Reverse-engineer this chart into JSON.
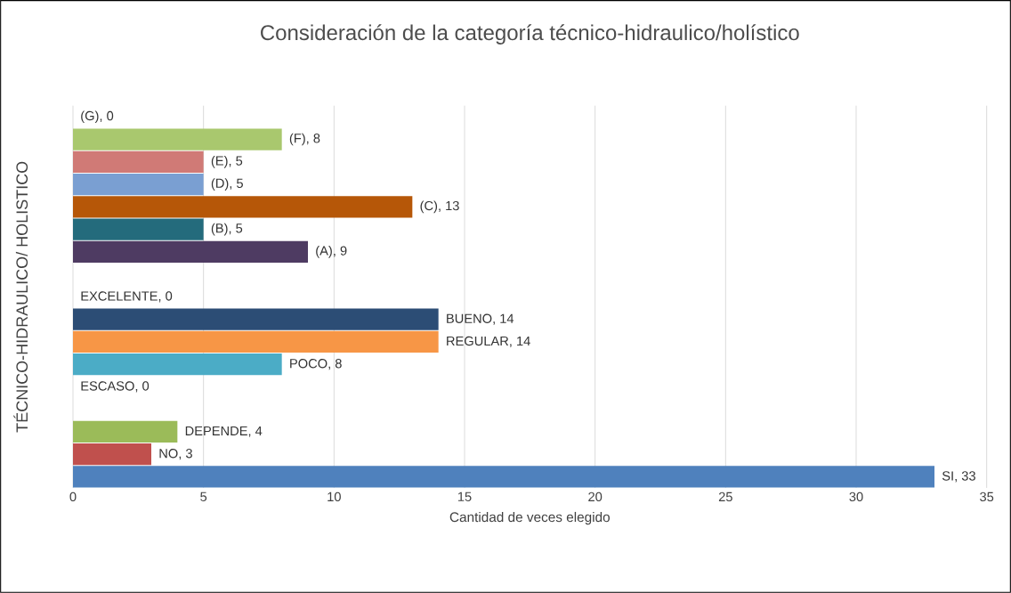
{
  "chart_data": {
    "type": "bar",
    "orientation": "horizontal",
    "title": "Consideración de la categoría técnico-hidraulico/holístico",
    "xlabel": "Cantidad de veces elegido",
    "ylabel": "TÉCNICO-HIDRAULICO/ HOLISTICO",
    "categories": [
      null,
      null,
      null,
      null,
      null,
      null,
      null,
      null,
      null,
      null,
      null,
      null,
      null,
      null,
      null,
      null,
      null
    ],
    "values": [
      0,
      8,
      5,
      5,
      13,
      5,
      9,
      null,
      0,
      14,
      14,
      8,
      0,
      null,
      4,
      3,
      33
    ],
    "colors": [
      "#9bbb59",
      "#a9c86e",
      "#d07a76",
      "#7a9fd2",
      "#b65708",
      "#246b7c",
      "#4e3b62",
      null,
      "#2c4d75",
      "#2c4d75",
      "#f79646",
      "#4bacc6",
      "#4bacc6",
      null,
      "#9bbb59",
      "#c0504d",
      "#4f81bd"
    ],
    "value_labels": [
      "(G), 0",
      "(F), 8",
      "(E), 5",
      "(D), 5",
      "(C), 13",
      "(B), 5",
      "(A), 9",
      null,
      "EXCELENTE, 0",
      "BUENO, 14",
      "REGULAR, 14",
      "POCO, 8",
      "ESCASO, 0",
      null,
      "DEPENDE, 4",
      "NO, 3",
      "SI, 33"
    ],
    "xlim": [
      0,
      35
    ],
    "xticks": [
      0,
      5,
      10,
      15,
      20,
      25,
      30,
      35
    ],
    "grid": "x",
    "tick_labels": "x"
  }
}
